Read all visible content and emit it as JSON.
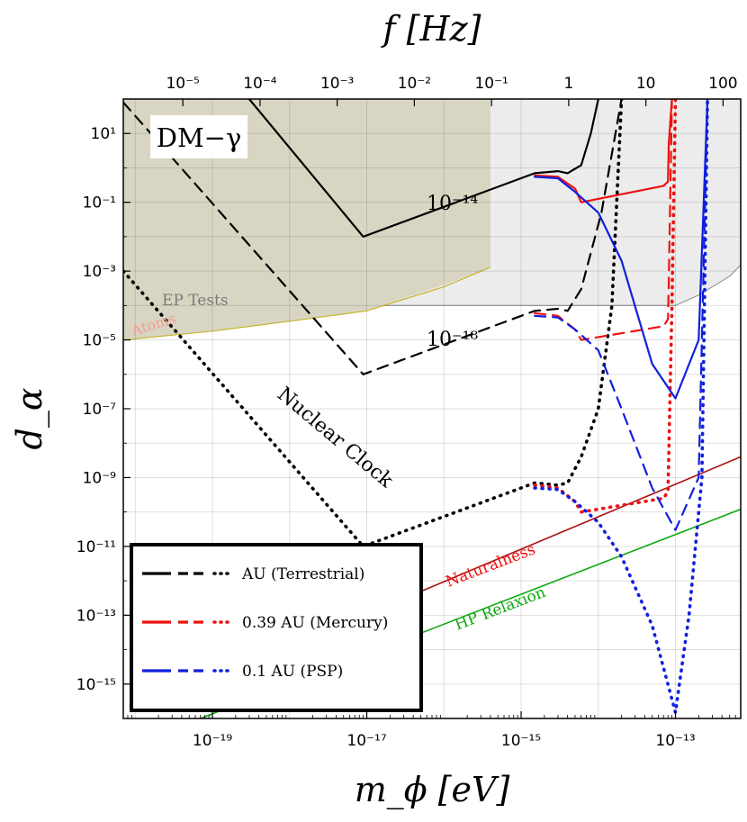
{
  "chart_data": {
    "type": "line",
    "title": "",
    "xlabel": "m_ϕ [eV]",
    "ylabel": "d_α",
    "top_xlabel": "f [Hz]",
    "xscale": "log",
    "yscale": "log",
    "xlim": [
      7e-21,
      7e-13
    ],
    "ylim": [
      1e-16,
      100
    ],
    "top_axis_hz_per_ev": 241800000000000.0,
    "grid": true,
    "x_ticks": [
      {
        "value": 1e-19,
        "label": "10⁻¹⁹"
      },
      {
        "value": 1e-17,
        "label": "10⁻¹⁷"
      },
      {
        "value": 1e-15,
        "label": "10⁻¹⁵"
      },
      {
        "value": 1e-13,
        "label": "10⁻¹³"
      }
    ],
    "y_ticks": [
      {
        "value": 10,
        "label": "10¹"
      },
      {
        "value": 0.1,
        "label": "10⁻¹"
      },
      {
        "value": 0.001,
        "label": "10⁻³"
      },
      {
        "value": 1e-05,
        "label": "10⁻⁵"
      },
      {
        "value": 1e-07,
        "label": "10⁻⁷"
      },
      {
        "value": 1e-09,
        "label": "10⁻⁹"
      },
      {
        "value": 1e-11,
        "label": "10⁻¹¹"
      },
      {
        "value": 1e-13,
        "label": "10⁻¹³"
      },
      {
        "value": 1e-15,
        "label": "10⁻¹⁵"
      }
    ],
    "top_ticks": [
      {
        "value": 1e-05,
        "label": "10⁻⁵"
      },
      {
        "value": 0.0001,
        "label": "10⁻⁴"
      },
      {
        "value": 0.001,
        "label": "10⁻³"
      },
      {
        "value": 0.01,
        "label": "10⁻²"
      },
      {
        "value": 0.1,
        "label": "10⁻¹"
      },
      {
        "value": 1,
        "label": "1"
      },
      {
        "value": 10,
        "label": "10"
      },
      {
        "value": 100,
        "label": "100"
      }
    ],
    "labels": {
      "dm_gamma": "DM−γ",
      "ep_tests": "EP Tests",
      "atoms": "Atoms",
      "nuclear_clock": "Nuclear Clock",
      "naturalness": "Naturalness",
      "hp_relaxion": "HP Relaxion",
      "sens_14": "10⁻¹⁴",
      "sens_18": "10⁻¹⁸"
    },
    "colors": {
      "terrestrial": "#000000",
      "mercury": "#ee1111",
      "psp": "#1020dd",
      "naturalness": "#aa1111",
      "hp_relaxion": "#11aa11",
      "dm_gamma_fill": "#d8d6c3",
      "ep_fill": "#ececec",
      "atoms_line": "#c9b42c",
      "ep_text": "#7a7a7a",
      "atoms_text": "#ee9f91"
    },
    "legend": {
      "position": "bottom-left",
      "entries": [
        {
          "label": "AU (Terrestrial)",
          "color": "#000000"
        },
        {
          "label": "0.39 AU (Mercury)",
          "color": "#ee1111"
        },
        {
          "label": "0.1 AU (PSP)",
          "color": "#1020dd"
        }
      ]
    },
    "regions": {
      "dm_gamma": {
        "x": [
          7e-21,
          4e-16
        ],
        "y_top": 100,
        "bottom": [
          [
            7e-21,
            1e-05
          ],
          [
            1e-19,
            1.8e-05
          ],
          [
            1e-18,
            3.5e-05
          ],
          [
            1e-17,
            7e-05
          ],
          [
            1e-16,
            0.0004
          ],
          [
            4e-16,
            0.0013
          ]
        ]
      },
      "ep_tests": [
        [
          7e-21,
          0.0001
        ],
        [
          1e-13,
          0.0001
        ],
        [
          2e-13,
          0.0002
        ],
        [
          5e-13,
          0.0007
        ],
        [
          7e-13,
          0.0015
        ]
      ],
      "atoms": [
        [
          7e-21,
          1e-05
        ],
        [
          1e-19,
          1.8e-05
        ],
        [
          1e-18,
          3.5e-05
        ],
        [
          1e-17,
          7e-05
        ],
        [
          1e-16,
          0.00035
        ],
        [
          4e-16,
          0.0013
        ]
      ]
    },
    "theory_lines": {
      "naturalness": [
        [
          7e-20,
          1e-15
        ],
        [
          7e-13,
          4e-09
        ]
      ],
      "hp_relaxion": [
        [
          7e-20,
          1e-16
        ],
        [
          7e-13,
          1.2e-10
        ]
      ]
    },
    "series": [
      {
        "name": "AU (Terrestrial)",
        "style": "solid",
        "color": "#000000",
        "points": [
          [
            3e-19,
            100
          ],
          [
            9e-18,
            0.01
          ],
          [
            1.5e-15,
            0.7
          ],
          [
            3e-15,
            0.8
          ],
          [
            4e-15,
            0.7
          ],
          [
            6e-15,
            1.2
          ],
          [
            8e-15,
            10
          ],
          [
            1e-14,
            100
          ]
        ]
      },
      {
        "name": "AU (Terrestrial)",
        "style": "dashed",
        "color": "#000000",
        "points": [
          [
            7e-21,
            80
          ],
          [
            9e-18,
            1e-06
          ],
          [
            1.5e-15,
            7e-05
          ],
          [
            3e-15,
            8e-05
          ],
          [
            4e-15,
            7e-05
          ],
          [
            6e-15,
            0.0003
          ],
          [
            1.1e-14,
            0.05
          ],
          [
            2e-14,
            100
          ]
        ]
      },
      {
        "name": "AU (Terrestrial)",
        "style": "dotted",
        "color": "#000000",
        "points": [
          [
            7e-21,
            0.001
          ],
          [
            9e-18,
            1e-11
          ],
          [
            1.5e-15,
            7e-10
          ],
          [
            3e-15,
            6e-10
          ],
          [
            4e-15,
            7e-10
          ],
          [
            6e-15,
            4e-09
          ],
          [
            1e-14,
            1e-07
          ],
          [
            1.5e-14,
            0.0001
          ],
          [
            2e-14,
            100
          ]
        ]
      },
      {
        "name": "0.39 AU (Mercury)",
        "style": "solid",
        "color": "#ee1111",
        "points": [
          [
            1.5e-15,
            0.6
          ],
          [
            3e-15,
            0.55
          ],
          [
            5e-15,
            0.25
          ],
          [
            6e-15,
            0.1
          ],
          [
            7e-14,
            0.3
          ],
          [
            8e-14,
            0.4
          ],
          [
            8.2e-14,
            5
          ],
          [
            9e-14,
            100
          ]
        ]
      },
      {
        "name": "0.39 AU (Mercury)",
        "style": "dashed",
        "color": "#ee1111",
        "points": [
          [
            1.5e-15,
            6e-05
          ],
          [
            3e-15,
            5e-05
          ],
          [
            5e-15,
            2e-05
          ],
          [
            6e-15,
            1e-05
          ],
          [
            7e-14,
            2.5e-05
          ],
          [
            8e-14,
            4e-05
          ],
          [
            8.2e-14,
            0.0005
          ],
          [
            9e-14,
            100
          ]
        ]
      },
      {
        "name": "0.39 AU (Mercury)",
        "style": "dotted",
        "color": "#ee1111",
        "points": [
          [
            1.5e-15,
            6e-10
          ],
          [
            3e-15,
            5e-10
          ],
          [
            5e-15,
            2e-10
          ],
          [
            6e-15,
            1e-10
          ],
          [
            7e-14,
            2.5e-10
          ],
          [
            8e-14,
            4e-10
          ],
          [
            8.2e-14,
            5e-09
          ],
          [
            9e-14,
            0.0001
          ],
          [
            1e-13,
            100
          ]
        ]
      },
      {
        "name": "0.1 AU (PSP)",
        "style": "solid",
        "color": "#1020dd",
        "points": [
          [
            1.5e-15,
            0.55
          ],
          [
            3e-15,
            0.5
          ],
          [
            5e-15,
            0.2
          ],
          [
            1e-14,
            0.05
          ],
          [
            2e-14,
            0.002
          ],
          [
            5e-14,
            2e-06
          ],
          [
            1e-13,
            2e-07
          ],
          [
            2e-13,
            1e-05
          ],
          [
            2.6e-13,
            100
          ]
        ]
      },
      {
        "name": "0.1 AU (PSP)",
        "style": "dashed",
        "color": "#1020dd",
        "points": [
          [
            1.5e-15,
            5e-05
          ],
          [
            3e-15,
            4.5e-05
          ],
          [
            5e-15,
            2e-05
          ],
          [
            1e-14,
            5e-06
          ],
          [
            2e-14,
            1e-07
          ],
          [
            5e-14,
            5e-10
          ],
          [
            1e-13,
            3e-11
          ],
          [
            2e-13,
            1e-09
          ],
          [
            2.6e-13,
            100
          ]
        ]
      },
      {
        "name": "0.1 AU (PSP)",
        "style": "dotted",
        "color": "#1020dd",
        "points": [
          [
            1.5e-15,
            5e-10
          ],
          [
            3e-15,
            4.5e-10
          ],
          [
            5e-15,
            2e-10
          ],
          [
            1e-14,
            5e-11
          ],
          [
            2e-14,
            5e-12
          ],
          [
            5e-14,
            5e-14
          ],
          [
            1e-13,
            1.5e-16
          ],
          [
            1.5e-13,
            1e-13
          ],
          [
            2.2e-13,
            1e-09
          ],
          [
            2.6e-13,
            100
          ]
        ]
      }
    ]
  }
}
